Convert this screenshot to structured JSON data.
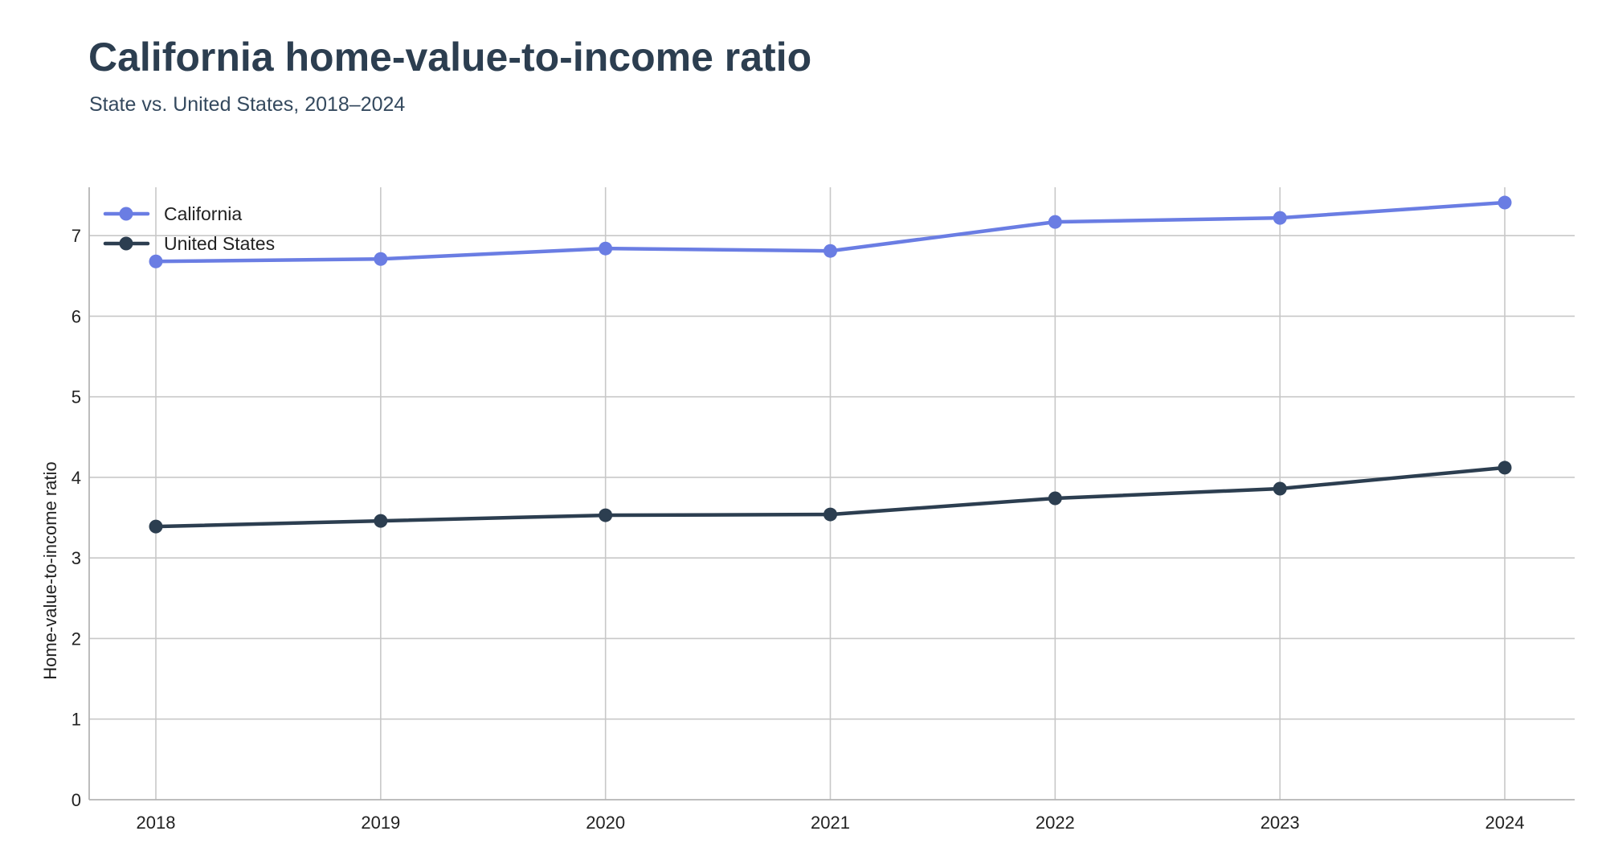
{
  "chart_data": {
    "type": "line",
    "title": "California home-value-to-income ratio",
    "subtitle": "State vs. United States, 2018–2024",
    "xlabel": "",
    "ylabel": "Home-value-to-income ratio",
    "x": [
      "2018",
      "2019",
      "2020",
      "2021",
      "2022",
      "2023",
      "2024"
    ],
    "ylim": [
      0,
      7.6
    ],
    "yticks": [
      0,
      1,
      2,
      3,
      4,
      5,
      6,
      7
    ],
    "grid": true,
    "legend_position": "top-left",
    "series": [
      {
        "name": "California",
        "color": "#6a7de3",
        "values": [
          6.68,
          6.71,
          6.84,
          6.81,
          7.17,
          7.22,
          7.41
        ]
      },
      {
        "name": "United States",
        "color": "#2c3e50",
        "values": [
          3.39,
          3.46,
          3.53,
          3.54,
          3.74,
          3.86,
          4.12
        ]
      }
    ]
  }
}
